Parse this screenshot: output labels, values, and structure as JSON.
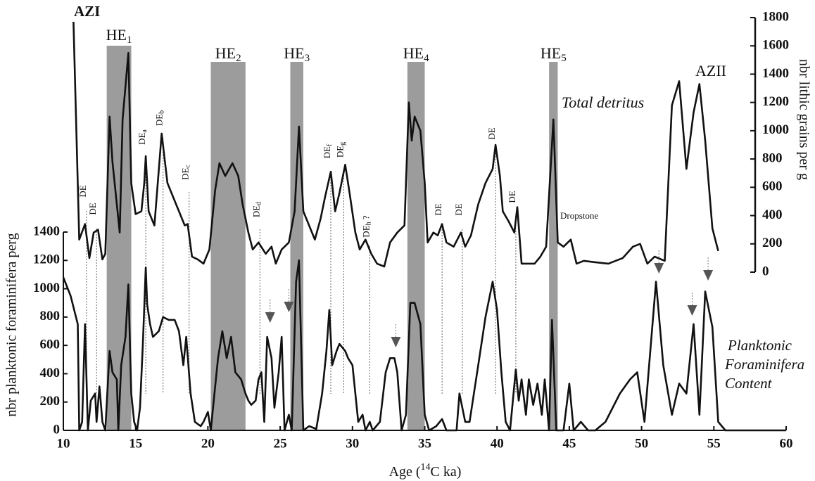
{
  "chart_data": {
    "type": "line",
    "x_label": {
      "before": "Age (",
      "sup": "14",
      "after": "C ka)"
    },
    "y_label": "nbr planktonic foraminifera perg",
    "y2_label": "nbr lithic grains per g",
    "xlim": [
      10,
      60
    ],
    "xticks": [
      10,
      15,
      20,
      25,
      30,
      35,
      40,
      45,
      50,
      55,
      60
    ],
    "ylim": [
      0,
      1400
    ],
    "yticks": [
      0,
      200,
      400,
      600,
      800,
      1000,
      1200,
      1400
    ],
    "y2lim": [
      0,
      1800
    ],
    "y2ticks": [
      0,
      200,
      400,
      600,
      800,
      1000,
      1200,
      1400,
      1600,
      1800
    ],
    "series": [
      {
        "name": "Total detritus",
        "axis": "y2",
        "color": "#111111",
        "x": [
          10.7,
          11.1,
          11.5,
          11.8,
          12.1,
          12.4,
          12.7,
          12.9,
          13.2,
          13.4,
          13.7,
          13.9,
          14.1,
          14.5,
          14.7,
          15.0,
          15.4,
          15.6,
          15.7,
          15.9,
          16.3,
          16.8,
          17.2,
          17.8,
          18.4,
          18.6,
          18.9,
          19.3,
          19.7,
          20.1,
          20.5,
          20.8,
          21.2,
          21.7,
          22.1,
          22.4,
          22.8,
          23.1,
          23.5,
          24.0,
          24.4,
          24.7,
          25.1,
          25.6,
          26.0,
          26.3,
          26.6,
          27.0,
          27.4,
          27.8,
          28.1,
          28.5,
          28.8,
          29.1,
          29.5,
          29.8,
          30.2,
          30.5,
          30.9,
          31.3,
          31.7,
          32.2,
          32.6,
          33.1,
          33.6,
          33.9,
          34.1,
          34.3,
          34.7,
          35.0,
          35.2,
          35.6,
          35.9,
          36.2,
          36.5,
          37.0,
          37.5,
          37.8,
          38.2,
          38.7,
          39.2,
          39.7,
          39.9,
          40.2,
          40.4,
          40.8,
          41.2,
          41.4,
          41.7,
          42.2,
          42.6,
          43.0,
          43.4,
          43.9,
          44.2,
          44.6,
          45.1,
          45.5,
          46.0,
          46.8,
          47.7,
          48.7,
          49.4,
          49.9,
          50.4,
          50.9,
          51.6,
          52.1,
          52.6,
          53.1,
          53.6,
          54.0,
          54.4,
          54.9,
          55.3
        ],
        "values": [
          1770,
          230,
          340,
          100,
          280,
          300,
          90,
          130,
          1100,
          780,
          480,
          280,
          1080,
          1550,
          630,
          410,
          430,
          630,
          820,
          430,
          330,
          980,
          630,
          480,
          330,
          340,
          110,
          90,
          60,
          160,
          580,
          770,
          680,
          770,
          680,
          480,
          280,
          160,
          210,
          130,
          180,
          60,
          160,
          210,
          430,
          1030,
          430,
          330,
          230,
          380,
          530,
          710,
          430,
          560,
          760,
          560,
          280,
          160,
          230,
          130,
          60,
          40,
          210,
          280,
          330,
          1200,
          930,
          1100,
          1000,
          630,
          210,
          280,
          260,
          340,
          210,
          180,
          280,
          180,
          260,
          480,
          630,
          730,
          900,
          680,
          430,
          360,
          280,
          460,
          60,
          60,
          60,
          110,
          180,
          1080,
          210,
          180,
          230,
          60,
          80,
          70,
          60,
          100,
          180,
          200,
          60,
          110,
          80,
          1180,
          1350,
          730,
          1130,
          1330,
          930,
          310,
          150
        ]
      },
      {
        "name": "Planktonic Foraminifera Content",
        "axis": "y",
        "color": "#111111",
        "x": [
          10.0,
          10.5,
          11.0,
          11.1,
          11.3,
          11.5,
          11.7,
          11.9,
          12.2,
          12.3,
          12.5,
          12.7,
          12.9,
          13.2,
          13.4,
          13.7,
          13.8,
          14.0,
          14.3,
          14.5,
          14.7,
          14.9,
          15.1,
          15.3,
          15.5,
          15.7,
          15.8,
          16.0,
          16.2,
          16.6,
          16.9,
          17.3,
          17.7,
          18.0,
          18.3,
          18.5,
          18.8,
          19.1,
          19.5,
          19.7,
          20.0,
          20.2,
          20.5,
          20.7,
          21.0,
          21.3,
          21.6,
          21.9,
          22.3,
          22.6,
          22.8,
          23.0,
          23.3,
          23.5,
          23.7,
          23.9,
          24.1,
          24.4,
          24.6,
          24.9,
          25.1,
          25.3,
          25.6,
          25.8,
          26.1,
          26.3,
          26.6,
          27.0,
          27.5,
          27.9,
          28.2,
          28.4,
          28.6,
          28.9,
          29.1,
          29.5,
          29.7,
          30.0,
          30.2,
          30.4,
          30.7,
          30.9,
          31.2,
          31.4,
          31.9,
          32.3,
          32.6,
          32.9,
          33.1,
          33.4,
          33.7,
          34.0,
          34.3,
          34.7,
          35.0,
          35.3,
          35.8,
          36.2,
          36.5,
          37.2,
          37.4,
          37.8,
          38.1,
          38.7,
          39.2,
          39.7,
          40.0,
          40.3,
          40.6,
          40.9,
          41.3,
          41.5,
          41.7,
          42.0,
          42.2,
          42.5,
          42.8,
          43.1,
          43.3,
          43.6,
          43.8,
          44.1,
          44.6,
          45.0,
          45.3,
          45.8,
          46.3,
          46.8,
          47.5,
          48.5,
          49.2,
          49.7,
          50.2,
          51.0,
          51.5,
          52.1,
          52.6,
          53.1,
          53.6,
          54.0,
          54.4,
          54.9,
          55.3,
          55.8,
          60.0
        ],
        "values": [
          1080,
          950,
          750,
          0,
          60,
          750,
          0,
          210,
          260,
          60,
          310,
          60,
          0,
          560,
          410,
          360,
          0,
          460,
          660,
          1030,
          260,
          60,
          0,
          160,
          610,
          1150,
          890,
          750,
          660,
          700,
          800,
          780,
          780,
          700,
          460,
          660,
          260,
          60,
          30,
          60,
          130,
          0,
          310,
          510,
          700,
          510,
          660,
          410,
          360,
          260,
          210,
          180,
          210,
          360,
          410,
          60,
          660,
          510,
          160,
          410,
          660,
          0,
          110,
          0,
          1050,
          1200,
          0,
          30,
          10,
          260,
          560,
          850,
          460,
          560,
          610,
          560,
          510,
          460,
          260,
          60,
          110,
          0,
          60,
          0,
          60,
          410,
          510,
          510,
          410,
          0,
          110,
          900,
          900,
          750,
          110,
          0,
          30,
          80,
          0,
          0,
          260,
          60,
          60,
          460,
          800,
          1050,
          850,
          410,
          60,
          0,
          430,
          210,
          360,
          110,
          360,
          180,
          330,
          110,
          360,
          0,
          780,
          0,
          0,
          330,
          0,
          60,
          0,
          0,
          60,
          260,
          360,
          410,
          60,
          1050,
          460,
          110,
          330,
          260,
          750,
          110,
          980,
          730,
          60,
          0,
          0
        ]
      }
    ],
    "heinrich_events": [
      {
        "label": "HE",
        "sub": "1",
        "range": [
          13.0,
          14.7
        ]
      },
      {
        "label": "HE",
        "sub": "2",
        "range": [
          20.2,
          22.6
        ]
      },
      {
        "label": "HE",
        "sub": "3",
        "range": [
          25.7,
          26.6
        ]
      },
      {
        "label": "HE",
        "sub": "4",
        "range": [
          33.8,
          35.0
        ]
      },
      {
        "label": "HE",
        "sub": "5",
        "range": [
          43.6,
          44.2
        ]
      }
    ],
    "detrital_events": [
      {
        "label": "DE",
        "age": 11.6
      },
      {
        "label": "DE",
        "age": 12.3
      },
      {
        "label": "DE",
        "sub": "a",
        "age": 15.7
      },
      {
        "label": "DE",
        "sub": "b",
        "age": 16.9
      },
      {
        "label": "DE",
        "sub": "c",
        "age": 18.7
      },
      {
        "label": "DE",
        "sub": "d",
        "age": 23.6
      },
      {
        "label": "DE",
        "sub": "f",
        "age": 28.5
      },
      {
        "label": "DE",
        "sub": "g",
        "age": 29.4
      },
      {
        "label": "DE",
        "sub": "h",
        "after": " ?",
        "age": 31.2
      },
      {
        "label": "DE",
        "age": 36.2
      },
      {
        "label": "DE",
        "age": 37.6
      },
      {
        "label": "DE",
        "age": 39.9
      },
      {
        "label": "DE",
        "age": 41.3
      }
    ],
    "arrows": [
      24.3,
      25.6,
      33.0,
      51.2,
      53.5,
      54.6
    ],
    "annotations": [
      "AZI",
      "AZII",
      "Dropstone"
    ]
  }
}
